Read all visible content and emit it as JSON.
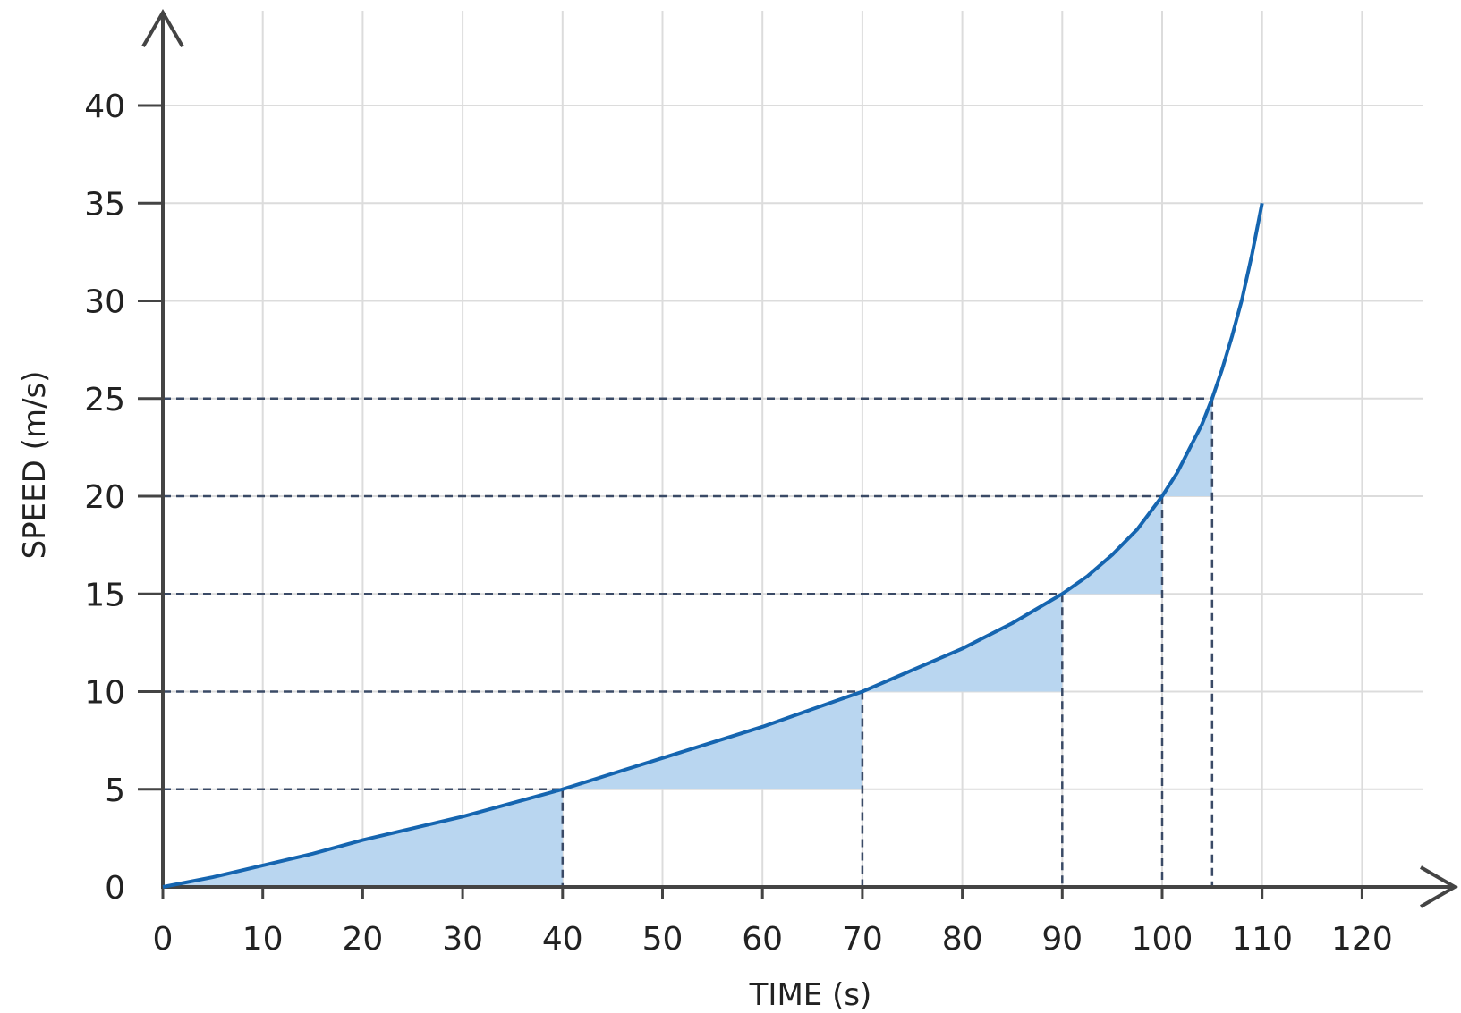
{
  "chart_data": {
    "type": "line",
    "title": "",
    "xlabel": "TIME (s)",
    "ylabel": "SPEED (m/s)",
    "xlim": [
      0,
      120
    ],
    "ylim": [
      0,
      40
    ],
    "x_ticks": [
      0,
      10,
      20,
      30,
      40,
      50,
      60,
      70,
      80,
      90,
      100,
      110,
      120
    ],
    "y_ticks": [
      0,
      5,
      10,
      15,
      20,
      25,
      30,
      35,
      40
    ],
    "x_tick_labels": [
      "0",
      "10",
      "20",
      "30",
      "40",
      "50",
      "60",
      "70",
      "80",
      "90",
      "100",
      "110",
      "120"
    ],
    "y_tick_labels": [
      "0",
      "5",
      "10",
      "15",
      "20",
      "25",
      "30",
      "35",
      "40"
    ],
    "grid": true,
    "colors": {
      "curve": "#1565b0",
      "shade": "#b9d6f0",
      "guides": "#3a4a66",
      "grid": "#dcdcdc"
    },
    "series": [
      {
        "x": [
          0,
          5,
          10,
          15,
          20,
          25,
          30,
          35,
          40,
          45,
          50,
          55,
          60,
          65,
          70,
          75,
          80,
          85,
          90,
          92.5,
          95,
          97.5,
          100,
          101.5,
          103,
          104,
          105,
          106,
          107,
          108,
          109,
          110
        ],
        "y": [
          0,
          0.5,
          1.1,
          1.7,
          2.4,
          3.0,
          3.6,
          4.3,
          5.0,
          5.8,
          6.6,
          7.4,
          8.2,
          9.1,
          10.0,
          11.1,
          12.2,
          13.5,
          15.0,
          15.9,
          17.0,
          18.3,
          20.0,
          21.2,
          22.7,
          23.7,
          25.0,
          26.5,
          28.2,
          30.1,
          32.4,
          35.0
        ]
      }
    ],
    "highlight_points": [
      {
        "x": 40,
        "y": 5
      },
      {
        "x": 70,
        "y": 10
      },
      {
        "x": 90,
        "y": 15
      },
      {
        "x": 100,
        "y": 20
      },
      {
        "x": 105,
        "y": 25
      }
    ]
  }
}
